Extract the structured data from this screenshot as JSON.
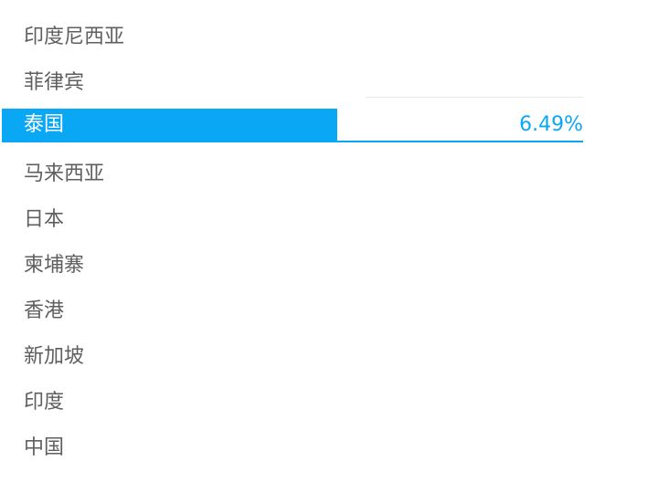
{
  "list": {
    "items": [
      {
        "label": "印度尼西亚"
      },
      {
        "label": "菲律宾"
      },
      {
        "label": "泰国",
        "value": "6.49%",
        "selected": true
      },
      {
        "label": "马来西亚"
      },
      {
        "label": "日本"
      },
      {
        "label": "柬埔寨"
      },
      {
        "label": "香港"
      },
      {
        "label": "新加坡"
      },
      {
        "label": "印度"
      },
      {
        "label": "中国"
      }
    ]
  },
  "colors": {
    "accent": "#0aa7f5",
    "text": "#5f5f5f",
    "selected_text": "#ffffff",
    "divider": "#e8e8e8"
  }
}
